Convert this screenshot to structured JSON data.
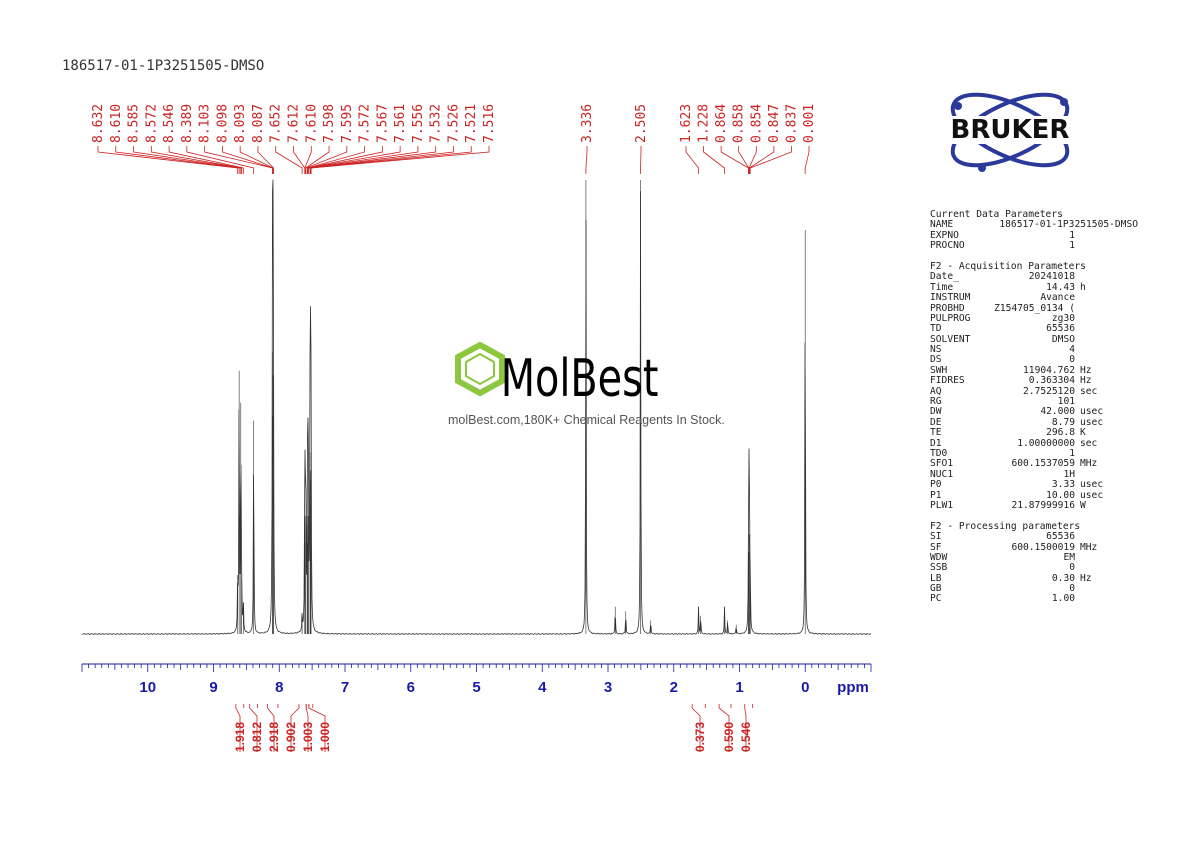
{
  "header": {
    "sample_name": "186517-01-1P3251505-DMSO"
  },
  "watermark": {
    "brand": "MolBest",
    "tagline": "molBest.com,180K+ Chemical Reagents In Stock."
  },
  "logo": {
    "text": "BRUKER"
  },
  "params": {
    "sections": [
      {
        "title": "Current Data Parameters",
        "rows": [
          {
            "k": "NAME",
            "v": "186517-01-1P3251505-DMSO",
            "u": ""
          },
          {
            "k": "EXPNO",
            "v": "1",
            "u": ""
          },
          {
            "k": "PROCNO",
            "v": "1",
            "u": ""
          }
        ]
      },
      {
        "title": "F2 - Acquisition Parameters",
        "rows": [
          {
            "k": "Date_",
            "v": "20241018",
            "u": ""
          },
          {
            "k": "Time",
            "v": "14.43",
            "u": "h"
          },
          {
            "k": "INSTRUM",
            "v": "Avance",
            "u": ""
          },
          {
            "k": "PROBHD",
            "v": "Z154705_0134 (",
            "u": ""
          },
          {
            "k": "PULPROG",
            "v": "zg30",
            "u": ""
          },
          {
            "k": "TD",
            "v": "65536",
            "u": ""
          },
          {
            "k": "SOLVENT",
            "v": "DMSO",
            "u": ""
          },
          {
            "k": "NS",
            "v": "4",
            "u": ""
          },
          {
            "k": "DS",
            "v": "0",
            "u": ""
          },
          {
            "k": "SWH",
            "v": "11904.762",
            "u": "Hz"
          },
          {
            "k": "FIDRES",
            "v": "0.363304",
            "u": "Hz"
          },
          {
            "k": "AQ",
            "v": "2.7525120",
            "u": "sec"
          },
          {
            "k": "RG",
            "v": "101",
            "u": ""
          },
          {
            "k": "DW",
            "v": "42.000",
            "u": "usec"
          },
          {
            "k": "DE",
            "v": "8.79",
            "u": "usec"
          },
          {
            "k": "TE",
            "v": "296.8",
            "u": "K"
          },
          {
            "k": "D1",
            "v": "1.00000000",
            "u": "sec"
          },
          {
            "k": "TD0",
            "v": "1",
            "u": ""
          },
          {
            "k": "SFO1",
            "v": "600.1537059",
            "u": "MHz"
          },
          {
            "k": "NUC1",
            "v": "1H",
            "u": ""
          },
          {
            "k": "P0",
            "v": "3.33",
            "u": "usec"
          },
          {
            "k": "P1",
            "v": "10.00",
            "u": "usec"
          },
          {
            "k": "PLW1",
            "v": "21.87999916",
            "u": "W"
          }
        ]
      },
      {
        "title": "F2 - Processing parameters",
        "rows": [
          {
            "k": "SI",
            "v": "65536",
            "u": ""
          },
          {
            "k": "SF",
            "v": "600.1500019",
            "u": "MHz"
          },
          {
            "k": "WDW",
            "v": "EM",
            "u": ""
          },
          {
            "k": "SSB",
            "v": "0",
            "u": ""
          },
          {
            "k": "LB",
            "v": "0.30",
            "u": "Hz"
          },
          {
            "k": "GB",
            "v": "0",
            "u": ""
          },
          {
            "k": "PC",
            "v": "1.00",
            "u": ""
          }
        ]
      }
    ]
  },
  "chart_data": {
    "type": "line",
    "title": "",
    "xlabel": "ppm",
    "ylabel": "",
    "x_reversed": true,
    "xlim": [
      11.0,
      -1.0
    ],
    "x_ticks": [
      10,
      9,
      8,
      7,
      6,
      5,
      4,
      3,
      2,
      1,
      0
    ],
    "x_tick_unit_label": "ppm",
    "peak_labels": [
      "8.632",
      "8.610",
      "8.585",
      "8.572",
      "8.546",
      "8.389",
      "8.103",
      "8.098",
      "8.093",
      "8.087",
      "7.652",
      "7.612",
      "7.610",
      "7.598",
      "7.595",
      "7.572",
      "7.567",
      "7.561",
      "7.556",
      "7.532",
      "7.526",
      "7.521",
      "7.516",
      "3.336",
      "2.505",
      "1.623",
      "1.228",
      "0.864",
      "0.858",
      "0.854",
      "0.847",
      "0.837",
      "0.001"
    ],
    "peaks": [
      {
        "ppm": 8.632,
        "height": 0.13
      },
      {
        "ppm": 8.61,
        "height": 0.58
      },
      {
        "ppm": 8.585,
        "height": 0.51
      },
      {
        "ppm": 8.572,
        "height": 0.12
      },
      {
        "ppm": 8.546,
        "height": 0.07
      },
      {
        "ppm": 8.389,
        "height": 0.47
      },
      {
        "ppm": 8.103,
        "height": 0.62
      },
      {
        "ppm": 8.098,
        "height": 0.48
      },
      {
        "ppm": 8.093,
        "height": 0.57
      },
      {
        "ppm": 8.087,
        "height": 0.32
      },
      {
        "ppm": 7.652,
        "height": 0.04
      },
      {
        "ppm": 7.612,
        "height": 0.26
      },
      {
        "ppm": 7.61,
        "height": 0.2
      },
      {
        "ppm": 7.598,
        "height": 0.26
      },
      {
        "ppm": 7.595,
        "height": 0.16
      },
      {
        "ppm": 7.572,
        "height": 0.24
      },
      {
        "ppm": 7.567,
        "height": 0.2
      },
      {
        "ppm": 7.561,
        "height": 0.26
      },
      {
        "ppm": 7.556,
        "height": 0.22
      },
      {
        "ppm": 7.532,
        "height": 0.4
      },
      {
        "ppm": 7.526,
        "height": 0.34
      },
      {
        "ppm": 7.521,
        "height": 0.36
      },
      {
        "ppm": 7.516,
        "height": 0.32
      },
      {
        "ppm": 3.336,
        "height": 1.0
      },
      {
        "ppm": 2.89,
        "height": 0.06
      },
      {
        "ppm": 2.73,
        "height": 0.05
      },
      {
        "ppm": 2.505,
        "height": 1.0
      },
      {
        "ppm": 2.35,
        "height": 0.03
      },
      {
        "ppm": 1.623,
        "height": 0.06
      },
      {
        "ppm": 1.59,
        "height": 0.04
      },
      {
        "ppm": 1.228,
        "height": 0.06
      },
      {
        "ppm": 1.18,
        "height": 0.03
      },
      {
        "ppm": 1.05,
        "height": 0.02
      },
      {
        "ppm": 0.864,
        "height": 0.12
      },
      {
        "ppm": 0.858,
        "height": 0.18
      },
      {
        "ppm": 0.854,
        "height": 0.22
      },
      {
        "ppm": 0.847,
        "height": 0.18
      },
      {
        "ppm": 0.837,
        "height": 0.12
      },
      {
        "ppm": 0.001,
        "height": 0.89
      }
    ],
    "integrals": [
      {
        "label": "1.918",
        "from": 8.66,
        "to": 8.54
      },
      {
        "label": "0.812",
        "from": 8.45,
        "to": 8.33
      },
      {
        "label": "2.918",
        "from": 8.18,
        "to": 8.02
      },
      {
        "label": "0.902",
        "from": 7.7,
        "to": 7.59
      },
      {
        "label": "1.003",
        "from": 7.59,
        "to": 7.55
      },
      {
        "label": "1.000",
        "from": 7.55,
        "to": 7.49
      },
      {
        "label": "0.373",
        "from": 1.72,
        "to": 1.52
      },
      {
        "label": "0.590",
        "from": 1.31,
        "to": 1.13
      },
      {
        "label": "0.546",
        "from": 0.92,
        "to": 0.8
      }
    ],
    "colors": {
      "spectrum": "#333333",
      "peak_labels": "#cc2222",
      "integrals": "#cc2222",
      "axis": "#1a1aaa",
      "tick_labels": "#1a1aaa"
    }
  }
}
